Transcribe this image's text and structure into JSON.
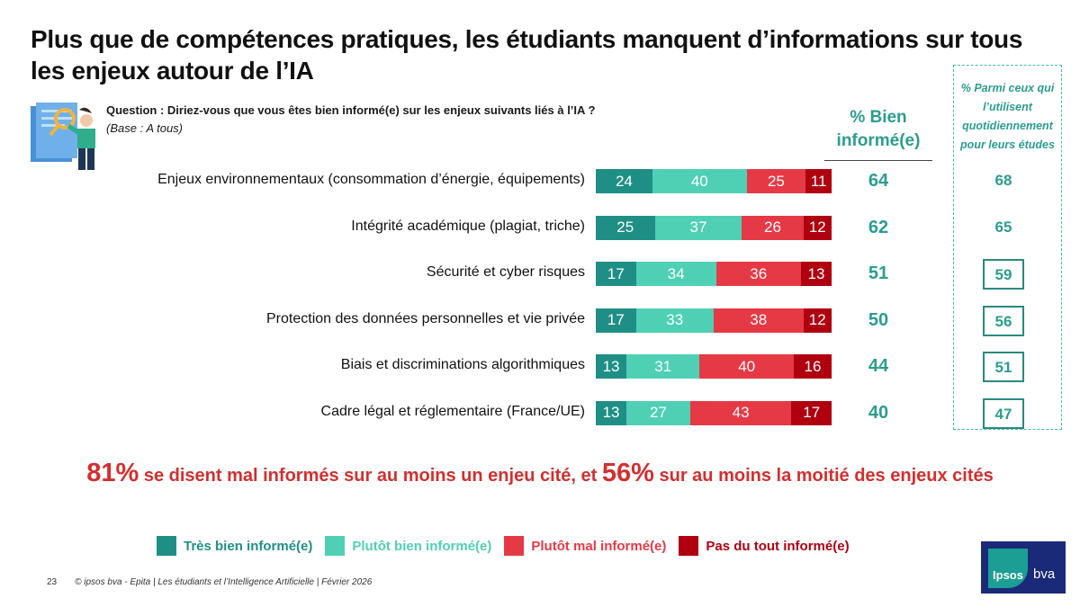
{
  "title": "Plus que de compétences pratiques, les étudiants manquent d’informations sur tous les enjeux autour de l’IA",
  "question": "Question : Diriez-vous que vous êtes bien informé(e) sur les enjeux suivants liés à l’IA ?",
  "base": "(Base : A tous)",
  "total_header": "% Bien informé(e)",
  "side_header": "% Parmi ceux qui l’utilisent quotidiennement pour leurs études",
  "colors": {
    "tres_bien": "#1f8f86",
    "plutot_bien": "#4fd0b4",
    "plutot_mal": "#e63946",
    "pas_du_tout": "#b00010"
  },
  "chart_data": {
    "type": "bar",
    "stacked": true,
    "orientation": "horizontal",
    "title": "Diriez-vous que vous êtes bien informé(e) sur les enjeux suivants liés à l’IA ?",
    "categories": [
      "Enjeux environnementaux (consommation d’énergie, équipements)",
      "Intégrité académique (plagiat, triche)",
      "Sécurité et cyber risques",
      "Protection des données personnelles et vie privée",
      "Biais et discriminations algorithmiques",
      "Cadre légal et réglementaire (France/UE)"
    ],
    "series": [
      {
        "name": "Très bien informé(e)",
        "values": [
          24,
          25,
          17,
          17,
          13,
          13
        ]
      },
      {
        "name": "Plutôt bien informé(e)",
        "values": [
          40,
          37,
          34,
          33,
          31,
          27
        ]
      },
      {
        "name": "Plutôt mal informé(e)",
        "values": [
          25,
          26,
          36,
          38,
          40,
          43
        ]
      },
      {
        "name": "Pas du tout informé(e)",
        "values": [
          11,
          12,
          13,
          12,
          16,
          17
        ]
      }
    ],
    "totals_bien_informe": [
      64,
      62,
      51,
      50,
      44,
      40
    ],
    "daily_users_bien_informe": [
      68,
      65,
      59,
      56,
      51,
      47
    ],
    "daily_users_highlighted": [
      false,
      false,
      true,
      true,
      true,
      true
    ],
    "xlim": [
      0,
      100
    ]
  },
  "highlight": {
    "pct1": "81%",
    "text1": " se disent mal informés sur au moins un enjeu cité, et ",
    "pct2": "56%",
    "text2": " sur au moins la moitié des enjeux cités"
  },
  "footer": {
    "page": "23",
    "source": "© ipsos bva - Epita | Les étudiants et l’Intelligence Artificielle | Février 2026"
  },
  "logo": {
    "brand": "Ipsos",
    "suffix": "bva"
  }
}
